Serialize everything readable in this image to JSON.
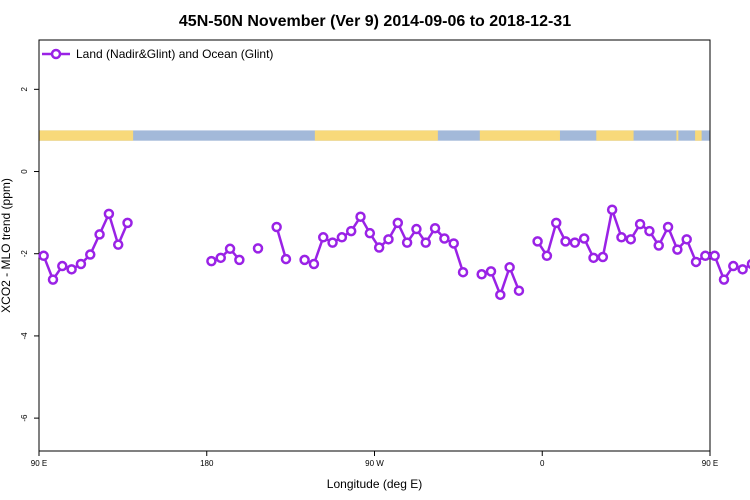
{
  "chart_data": {
    "type": "line",
    "title": "45N-50N November (Ver 9)   2014-09-06 to 2018-12-31",
    "xlabel": "Longitude (deg E)",
    "ylabel": "XCO2 - MLO trend (ppm)",
    "xlim": [
      90,
      450
    ],
    "ylim": [
      -6.8,
      3.2
    ],
    "x_ticks": [
      {
        "value": 90,
        "label": "90 E"
      },
      {
        "value": 180,
        "label": "180"
      },
      {
        "value": 270,
        "label": "90 W"
      },
      {
        "value": 360,
        "label": "0"
      },
      {
        "value": 450,
        "label": "90 E"
      },
      {
        "value": 540,
        "label": "180"
      }
    ],
    "y_ticks": [
      {
        "value": 2,
        "label": "2"
      },
      {
        "value": 0,
        "label": "0"
      },
      {
        "value": -2,
        "label": "-2"
      },
      {
        "value": -4,
        "label": "-4"
      },
      {
        "value": -6,
        "label": "-6"
      }
    ],
    "legend": {
      "position": "top-left",
      "entries": [
        "Land (Nadir&Glint) and Ocean (Glint)"
      ]
    },
    "colors": {
      "series": "#9a22e6",
      "land": "#f8d97a",
      "ocean": "#a3b9d9"
    },
    "land_ocean_band": {
      "y_range": [
        0.75,
        1.0
      ],
      "land_segments": [
        [
          90,
          140.5
        ],
        [
          238,
          304
        ],
        [
          326.5,
          369.5
        ],
        [
          389,
          409
        ],
        [
          432,
          433
        ],
        [
          442,
          445.5
        ],
        [
          452,
          496
        ]
      ]
    },
    "series": [
      {
        "name": "Land (Nadir&Glint) and Ocean (Glint)",
        "segments": [
          [
            {
              "x": 92.5,
              "y": -2.05
            },
            {
              "x": 97.5,
              "y": -2.63
            },
            {
              "x": 102.5,
              "y": -2.3
            },
            {
              "x": 107.5,
              "y": -2.38
            },
            {
              "x": 112.5,
              "y": -2.25
            },
            {
              "x": 117.5,
              "y": -2.02
            },
            {
              "x": 122.5,
              "y": -1.53
            },
            {
              "x": 127.5,
              "y": -1.03
            },
            {
              "x": 132.5,
              "y": -1.78
            },
            {
              "x": 137.5,
              "y": -1.25
            }
          ],
          [
            {
              "x": 182.5,
              "y": -2.18
            },
            {
              "x": 187.5,
              "y": -2.1
            },
            {
              "x": 192.5,
              "y": -1.88
            },
            {
              "x": 197.5,
              "y": -2.15
            }
          ],
          [
            {
              "x": 207.5,
              "y": -1.87
            }
          ],
          [
            {
              "x": 217.5,
              "y": -1.35
            },
            {
              "x": 222.5,
              "y": -2.13
            }
          ],
          [
            {
              "x": 232.5,
              "y": -2.15
            },
            {
              "x": 237.5,
              "y": -2.25
            },
            {
              "x": 242.5,
              "y": -1.6
            },
            {
              "x": 247.5,
              "y": -1.73
            },
            {
              "x": 252.5,
              "y": -1.6
            },
            {
              "x": 257.5,
              "y": -1.45
            },
            {
              "x": 262.5,
              "y": -1.1
            },
            {
              "x": 267.5,
              "y": -1.5
            },
            {
              "x": 272.5,
              "y": -1.85
            },
            {
              "x": 277.5,
              "y": -1.65
            },
            {
              "x": 282.5,
              "y": -1.25
            },
            {
              "x": 287.5,
              "y": -1.73
            },
            {
              "x": 292.5,
              "y": -1.4
            },
            {
              "x": 297.5,
              "y": -1.73
            },
            {
              "x": 302.5,
              "y": -1.38
            },
            {
              "x": 307.5,
              "y": -1.63
            },
            {
              "x": 312.5,
              "y": -1.75
            },
            {
              "x": 317.5,
              "y": -2.45
            }
          ],
          [
            {
              "x": 327.5,
              "y": -2.5
            },
            {
              "x": 332.5,
              "y": -2.43
            },
            {
              "x": 337.5,
              "y": -3.0
            },
            {
              "x": 342.5,
              "y": -2.33
            },
            {
              "x": 347.5,
              "y": -2.9
            }
          ],
          [
            {
              "x": 357.5,
              "y": -1.7
            },
            {
              "x": 362.5,
              "y": -2.05
            },
            {
              "x": 367.5,
              "y": -1.25
            },
            {
              "x": 372.5,
              "y": -1.7
            },
            {
              "x": 377.5,
              "y": -1.73
            },
            {
              "x": 382.5,
              "y": -1.63
            },
            {
              "x": 387.5,
              "y": -2.1
            },
            {
              "x": 392.5,
              "y": -2.08
            },
            {
              "x": 397.5,
              "y": -0.93
            },
            {
              "x": 402.5,
              "y": -1.6
            },
            {
              "x": 407.5,
              "y": -1.65
            },
            {
              "x": 412.5,
              "y": -1.28
            },
            {
              "x": 417.5,
              "y": -1.45
            },
            {
              "x": 422.5,
              "y": -1.8
            },
            {
              "x": 427.5,
              "y": -1.35
            },
            {
              "x": 432.5,
              "y": -1.9
            },
            {
              "x": 437.5,
              "y": -1.65
            },
            {
              "x": 442.5,
              "y": -2.2
            },
            {
              "x": 447.5,
              "y": -2.05
            },
            {
              "x": 452.5,
              "y": -2.05
            },
            {
              "x": 457.5,
              "y": -2.63
            },
            {
              "x": 462.5,
              "y": -2.3
            },
            {
              "x": 467.5,
              "y": -2.38
            },
            {
              "x": 472.5,
              "y": -2.25
            },
            {
              "x": 477.5,
              "y": -2.02
            },
            {
              "x": 482.5,
              "y": -1.53
            },
            {
              "x": 487.5,
              "y": -1.03
            },
            {
              "x": 492.5,
              "y": -1.78
            },
            {
              "x": 497.5,
              "y": -1.25
            }
          ]
        ]
      }
    ]
  }
}
